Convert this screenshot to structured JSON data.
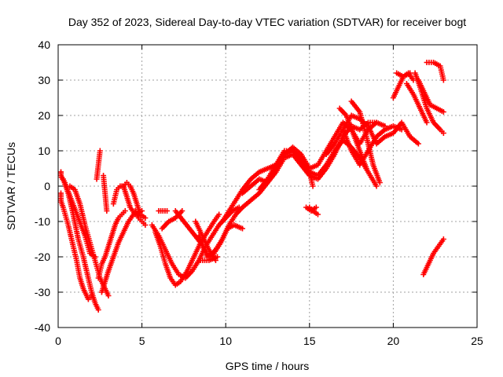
{
  "chart_data": {
    "type": "scatter",
    "title": "Day 352 of 2023, Sidereal Day-to-day VTEC variation (SDTVAR) for receiver bogt",
    "xlabel": "GPS time / hours",
    "ylabel": "SDTVAR / TECUs",
    "xlim": [
      0,
      25
    ],
    "ylim": [
      -40,
      40
    ],
    "xticks": [
      0,
      5,
      10,
      15,
      20,
      25
    ],
    "yticks": [
      -40,
      -30,
      -20,
      -10,
      0,
      10,
      20,
      30,
      40
    ],
    "grid": true,
    "marker": "+",
    "color": "#ff0000",
    "tracks": [
      [
        [
          0.0,
          4
        ],
        [
          0.3,
          2
        ],
        [
          0.6,
          -2
        ],
        [
          0.9,
          -8
        ],
        [
          1.2,
          -15
        ],
        [
          1.5,
          -20
        ],
        [
          1.8,
          -26
        ],
        [
          2.0,
          -30
        ],
        [
          2.2,
          -33
        ],
        [
          2.4,
          -35
        ]
      ],
      [
        [
          0.0,
          -2
        ],
        [
          0.3,
          -6
        ],
        [
          0.6,
          -11
        ],
        [
          0.9,
          -17
        ],
        [
          1.1,
          -21
        ],
        [
          1.3,
          -26
        ],
        [
          1.5,
          -29
        ],
        [
          1.8,
          -32
        ],
        [
          2.0,
          -31
        ]
      ],
      [
        [
          0.0,
          4
        ],
        [
          0.4,
          1
        ],
        [
          0.8,
          -4
        ],
        [
          1.2,
          -9
        ],
        [
          1.6,
          -14
        ],
        [
          1.9,
          -19
        ],
        [
          2.2,
          -20
        ]
      ],
      [
        [
          0.7,
          0
        ],
        [
          1.0,
          -1
        ],
        [
          1.3,
          -5
        ],
        [
          1.6,
          -11
        ],
        [
          1.9,
          -16
        ],
        [
          2.2,
          -21
        ],
        [
          2.5,
          -26
        ],
        [
          2.8,
          -29
        ],
        [
          3.0,
          -31
        ]
      ],
      [
        [
          2.3,
          2
        ],
        [
          2.4,
          6
        ],
        [
          2.5,
          10
        ]
      ],
      [
        [
          2.7,
          3
        ],
        [
          2.8,
          -2
        ],
        [
          2.9,
          -7
        ]
      ],
      [
        [
          2.4,
          -26
        ],
        [
          2.6,
          -22
        ],
        [
          2.8,
          -20
        ],
        [
          3.0,
          -17
        ],
        [
          3.2,
          -14
        ],
        [
          3.4,
          -11
        ],
        [
          3.6,
          -9
        ],
        [
          3.8,
          -8
        ],
        [
          4.0,
          -7
        ]
      ],
      [
        [
          2.6,
          -30
        ],
        [
          2.8,
          -27
        ],
        [
          3.0,
          -24
        ],
        [
          3.3,
          -20
        ],
        [
          3.6,
          -16
        ],
        [
          3.9,
          -13
        ],
        [
          4.2,
          -10
        ],
        [
          4.5,
          -8
        ]
      ],
      [
        [
          3.3,
          -5
        ],
        [
          3.5,
          -1
        ],
        [
          3.7,
          0
        ],
        [
          3.9,
          0
        ],
        [
          4.1,
          -3
        ],
        [
          4.3,
          -6
        ],
        [
          4.6,
          -8
        ],
        [
          5.0,
          -7
        ]
      ],
      [
        [
          3.9,
          0
        ],
        [
          4.1,
          1
        ],
        [
          4.3,
          0
        ],
        [
          4.5,
          -2
        ],
        [
          4.7,
          -5
        ],
        [
          4.9,
          -8
        ],
        [
          5.2,
          -9
        ]
      ],
      [
        [
          4.6,
          -7
        ],
        [
          4.8,
          -9
        ],
        [
          5.0,
          -10
        ],
        [
          5.2,
          -11
        ]
      ],
      [
        [
          6.0,
          -7
        ],
        [
          6.5,
          -7
        ]
      ],
      [
        [
          5.6,
          -11
        ],
        [
          6.0,
          -14
        ],
        [
          6.4,
          -18
        ],
        [
          6.8,
          -22
        ],
        [
          7.2,
          -25
        ],
        [
          7.6,
          -26
        ],
        [
          8.0,
          -24
        ],
        [
          8.4,
          -21
        ],
        [
          8.8,
          -17
        ],
        [
          9.2,
          -14
        ],
        [
          9.6,
          -11
        ],
        [
          10.0,
          -9
        ],
        [
          10.4,
          -7
        ],
        [
          10.8,
          -6
        ]
      ],
      [
        [
          5.8,
          -13
        ],
        [
          6.1,
          -17
        ],
        [
          6.4,
          -22
        ],
        [
          6.7,
          -26
        ],
        [
          7.0,
          -28
        ],
        [
          7.3,
          -27
        ],
        [
          7.7,
          -24
        ],
        [
          8.1,
          -20
        ],
        [
          8.5,
          -16
        ],
        [
          8.9,
          -13
        ],
        [
          9.3,
          -10
        ],
        [
          9.6,
          -8
        ]
      ],
      [
        [
          6.2,
          -12
        ],
        [
          6.6,
          -10
        ],
        [
          7.0,
          -9
        ],
        [
          7.4,
          -7
        ]
      ],
      [
        [
          7.0,
          -7
        ],
        [
          7.5,
          -10
        ],
        [
          8.0,
          -13
        ],
        [
          8.5,
          -16
        ],
        [
          9.0,
          -20
        ],
        [
          9.4,
          -18
        ],
        [
          9.8,
          -15
        ],
        [
          10.2,
          -11
        ],
        [
          10.6,
          -8
        ],
        [
          11.0,
          -6
        ],
        [
          11.5,
          -4
        ],
        [
          12.0,
          -2
        ],
        [
          12.5,
          1
        ],
        [
          13.0,
          5
        ],
        [
          13.5,
          9
        ],
        [
          14.0,
          10
        ],
        [
          14.5,
          7
        ],
        [
          15.0,
          4
        ],
        [
          15.5,
          3
        ],
        [
          16.0,
          6
        ],
        [
          16.5,
          10
        ],
        [
          17.0,
          13
        ],
        [
          17.5,
          11
        ],
        [
          18.0,
          8
        ],
        [
          18.5,
          4
        ],
        [
          19.0,
          0
        ]
      ],
      [
        [
          8.2,
          -10
        ],
        [
          8.6,
          -14
        ],
        [
          9.0,
          -18
        ],
        [
          9.4,
          -21
        ]
      ],
      [
        [
          8.5,
          -21
        ],
        [
          9.0,
          -21
        ],
        [
          9.5,
          -20
        ]
      ],
      [
        [
          8.4,
          -14
        ],
        [
          8.9,
          -20
        ],
        [
          9.3,
          -19
        ],
        [
          9.7,
          -16
        ],
        [
          10.1,
          -12
        ],
        [
          10.5,
          -11
        ],
        [
          11.0,
          -12
        ]
      ],
      [
        [
          9.8,
          -10
        ],
        [
          10.2,
          -7
        ],
        [
          10.6,
          -4
        ],
        [
          11.0,
          -1
        ],
        [
          11.5,
          2
        ],
        [
          12.0,
          4
        ],
        [
          12.5,
          5
        ],
        [
          13.0,
          6
        ],
        [
          13.5,
          9
        ],
        [
          14.0,
          11
        ],
        [
          14.5,
          9
        ],
        [
          15.0,
          5
        ],
        [
          15.5,
          6
        ],
        [
          16.0,
          10
        ],
        [
          16.5,
          14
        ],
        [
          17.0,
          18
        ],
        [
          17.5,
          16
        ],
        [
          18.0,
          12
        ],
        [
          18.5,
          16
        ],
        [
          19.0,
          18
        ]
      ],
      [
        [
          11.0,
          -2
        ],
        [
          11.5,
          0
        ],
        [
          12.0,
          2
        ],
        [
          12.5,
          1
        ],
        [
          13.0,
          4
        ],
        [
          13.5,
          8
        ],
        [
          14.0,
          9
        ],
        [
          14.5,
          6
        ],
        [
          15.0,
          3
        ],
        [
          15.5,
          2
        ],
        [
          16.0,
          5
        ],
        [
          16.5,
          9
        ],
        [
          17.0,
          14
        ],
        [
          17.5,
          17
        ],
        [
          18.0,
          16
        ],
        [
          18.5,
          18
        ],
        [
          19.0,
          18
        ],
        [
          19.5,
          17
        ]
      ],
      [
        [
          12.0,
          -1
        ],
        [
          12.5,
          2
        ],
        [
          13.0,
          6
        ],
        [
          13.5,
          10
        ],
        [
          14.0,
          10
        ],
        [
          14.5,
          8
        ],
        [
          15.0,
          4
        ],
        [
          15.2,
          0
        ]
      ],
      [
        [
          16.0,
          9
        ],
        [
          16.5,
          12
        ],
        [
          17.0,
          16
        ],
        [
          17.5,
          20
        ],
        [
          18.0,
          19
        ],
        [
          18.5,
          17
        ],
        [
          19.0,
          12
        ],
        [
          19.5,
          14
        ],
        [
          20.0,
          15
        ],
        [
          20.5,
          18
        ],
        [
          21.0,
          14
        ],
        [
          21.5,
          12
        ]
      ],
      [
        [
          17.0,
          16
        ],
        [
          17.5,
          10
        ],
        [
          18.0,
          6
        ],
        [
          18.5,
          10
        ],
        [
          19.0,
          14
        ],
        [
          19.5,
          16
        ],
        [
          20.0,
          17
        ],
        [
          20.5,
          16
        ]
      ],
      [
        [
          16.8,
          22
        ],
        [
          17.2,
          20
        ],
        [
          17.6,
          15
        ],
        [
          18.0,
          10
        ],
        [
          18.4,
          5
        ]
      ],
      [
        [
          17.5,
          24
        ],
        [
          18.0,
          21
        ],
        [
          18.4,
          14
        ],
        [
          18.8,
          6
        ],
        [
          19.2,
          1
        ]
      ],
      [
        [
          15.0,
          -6
        ],
        [
          15.2,
          -7
        ],
        [
          15.5,
          -8
        ]
      ],
      [
        [
          14.8,
          -6
        ],
        [
          15.1,
          -7
        ],
        [
          15.4,
          -6
        ]
      ],
      [
        [
          20.0,
          25
        ],
        [
          20.3,
          28
        ],
        [
          20.6,
          31
        ],
        [
          20.9,
          32
        ],
        [
          21.2,
          30
        ]
      ],
      [
        [
          20.2,
          32
        ],
        [
          20.6,
          31
        ],
        [
          21.0,
          32
        ]
      ],
      [
        [
          21.5,
          30
        ],
        [
          21.8,
          27
        ],
        [
          22.2,
          23
        ],
        [
          22.6,
          22
        ],
        [
          23.0,
          21
        ]
      ],
      [
        [
          21.3,
          32
        ],
        [
          21.6,
          28
        ],
        [
          22.0,
          22
        ],
        [
          22.4,
          18
        ],
        [
          22.8,
          16
        ],
        [
          23.0,
          15
        ]
      ],
      [
        [
          22.0,
          35
        ],
        [
          22.4,
          35
        ],
        [
          22.8,
          34
        ],
        [
          23.0,
          30
        ]
      ],
      [
        [
          20.8,
          29
        ],
        [
          21.2,
          26
        ],
        [
          21.6,
          22
        ],
        [
          22.0,
          18
        ]
      ],
      [
        [
          21.8,
          -25
        ],
        [
          22.1,
          -22
        ],
        [
          22.4,
          -19
        ],
        [
          22.7,
          -17
        ],
        [
          23.0,
          -15
        ]
      ]
    ]
  }
}
